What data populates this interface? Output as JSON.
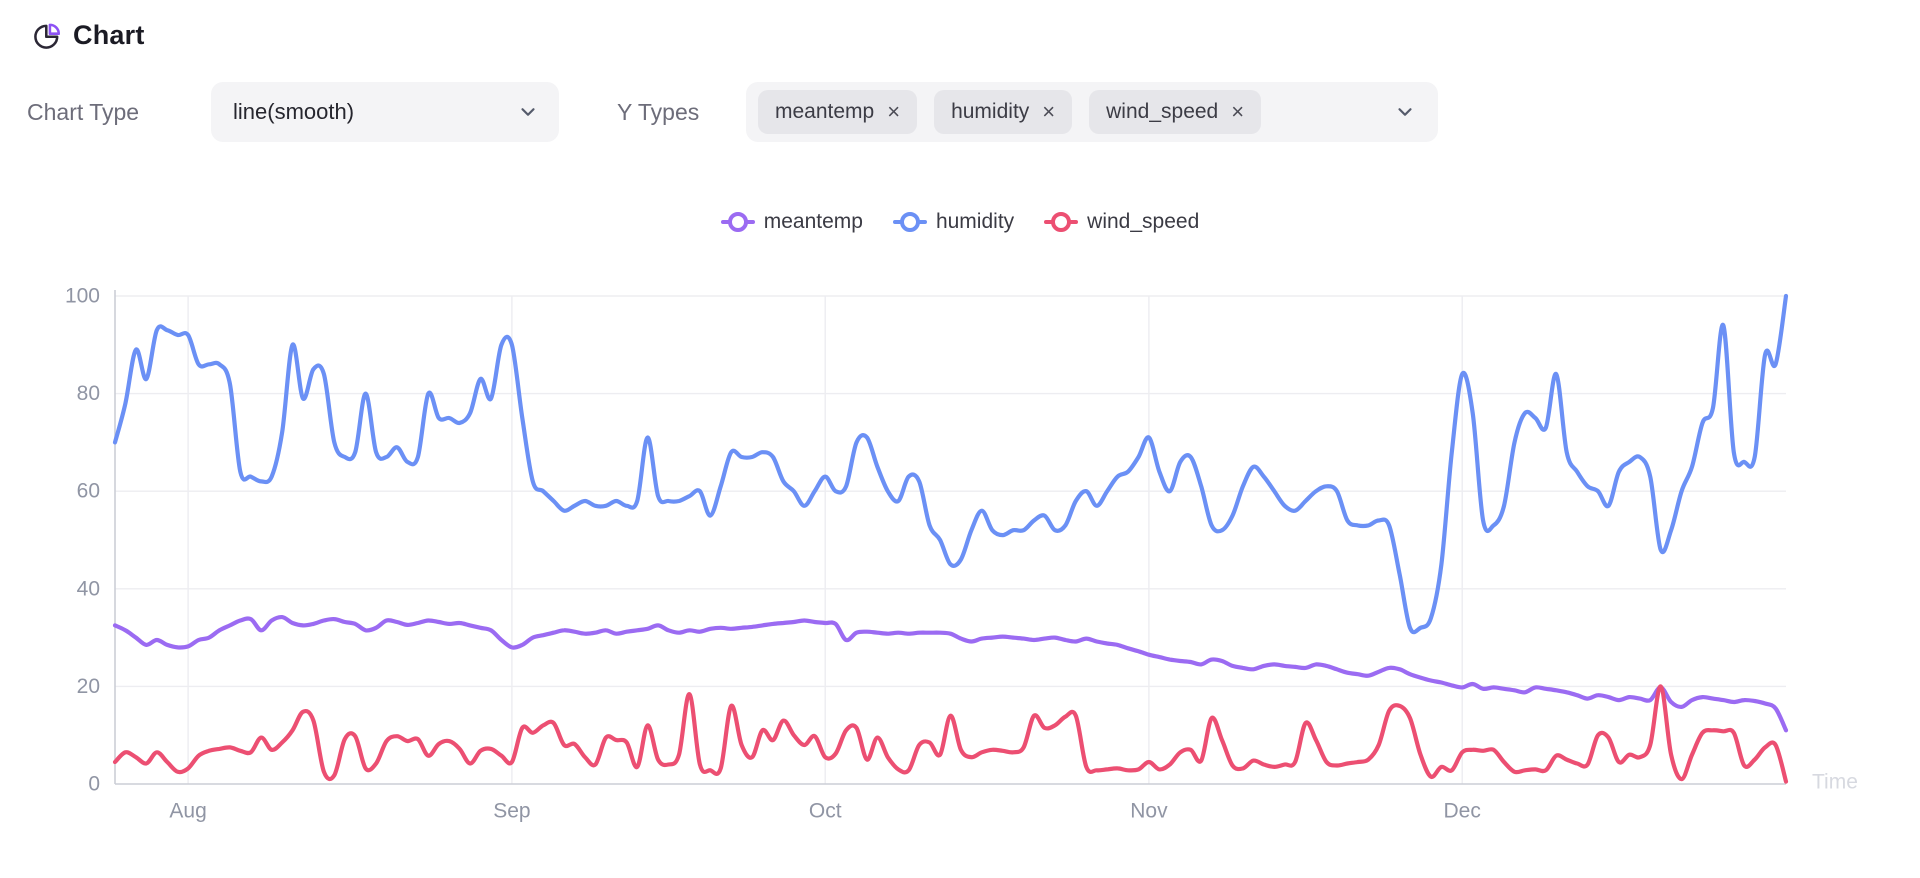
{
  "header": {
    "title": "Chart"
  },
  "controls": {
    "chart_type_label": "Chart Type",
    "chart_type_value": "line(smooth)",
    "y_types_label": "Y Types",
    "chip_remove_glyph": "×",
    "chips": [
      {
        "label": "meantemp"
      },
      {
        "label": "humidity"
      },
      {
        "label": "wind_speed"
      }
    ]
  },
  "legend": [
    {
      "label": "meantemp",
      "color": "#9b6bf2"
    },
    {
      "label": "humidity",
      "color": "#6b90f5"
    },
    {
      "label": "wind_speed",
      "color": "#ec4f72"
    }
  ],
  "colors": {
    "accent_purple": "#8d52f5",
    "icon_dark": "#2b2735",
    "grid": "#ededf1",
    "axis": "#ccced6",
    "tick_text": "#9095a4",
    "axis_name_text": "#d7d9e0",
    "control_bg": "#f4f4f6",
    "chip_bg": "#e6e6ea"
  },
  "chart_data": {
    "type": "line",
    "smooth": true,
    "grid": true,
    "legend_position": "top-center",
    "x_axis": {
      "name": "Time",
      "tick_labels": [
        "Aug",
        "Sep",
        "Oct",
        "Nov",
        "Dec"
      ],
      "tick_day_index": [
        7,
        38,
        68,
        99,
        129
      ]
    },
    "y_axis": {
      "range": [
        0,
        100
      ],
      "ticks": [
        0,
        20,
        40,
        60,
        80,
        100
      ]
    },
    "series": [
      {
        "name": "meantemp",
        "color": "#9b6bf2",
        "values": [
          32.5,
          31.5,
          30,
          28.5,
          29.5,
          28.5,
          28,
          28.2,
          29.5,
          30,
          31.5,
          32.5,
          33.5,
          33.8,
          31.5,
          33.5,
          34.2,
          33,
          32.5,
          32.8,
          33.5,
          33.8,
          33.2,
          32.8,
          31.5,
          32,
          33.5,
          33.2,
          32.6,
          33,
          33.5,
          33.2,
          32.8,
          33,
          32.5,
          32,
          31.5,
          29.5,
          28,
          28.5,
          30,
          30.5,
          31,
          31.5,
          31.2,
          30.8,
          31,
          31.5,
          30.8,
          31.2,
          31.5,
          31.8,
          32.5,
          31.5,
          31,
          31.5,
          31.2,
          31.8,
          32,
          31.8,
          32,
          32.2,
          32.5,
          32.8,
          33,
          33.2,
          33.5,
          33.2,
          33,
          32.8,
          29.5,
          31,
          31.2,
          31,
          30.8,
          31,
          30.8,
          31,
          31,
          31,
          30.8,
          29.8,
          29.2,
          29.8,
          30,
          30.2,
          30,
          29.8,
          29.5,
          29.8,
          30,
          29.5,
          29.2,
          29.8,
          29.2,
          28.8,
          28.5,
          27.8,
          27.2,
          26.5,
          26,
          25.5,
          25.2,
          25,
          24.5,
          25.5,
          25.2,
          24.2,
          23.8,
          23.5,
          24.2,
          24.5,
          24.2,
          24,
          23.8,
          24.5,
          24.2,
          23.5,
          22.8,
          22.5,
          22.2,
          23,
          23.8,
          23.5,
          22.5,
          21.8,
          21.2,
          20.8,
          20.2,
          19.8,
          20.5,
          19.5,
          19.8,
          19.5,
          19.2,
          18.8,
          19.8,
          19.5,
          19.2,
          18.8,
          18.2,
          17.5,
          18.2,
          17.8,
          17.2,
          17.8,
          17.5,
          17.2,
          19.8,
          16.8,
          15.8,
          17.2,
          17.8,
          17.5,
          17.2,
          16.8,
          17.2,
          17,
          16.5,
          15.5,
          11
        ]
      },
      {
        "name": "humidity",
        "color": "#6b90f5",
        "values": [
          70,
          78,
          89,
          83,
          93,
          93,
          92,
          92,
          86,
          86,
          86,
          82,
          64,
          63,
          62,
          63,
          72,
          90,
          79,
          85,
          84,
          70,
          67,
          68,
          80,
          68,
          67,
          69,
          66,
          67,
          80,
          75,
          75,
          74,
          76,
          83,
          79,
          90,
          90,
          75,
          62,
          60,
          58,
          56,
          57,
          58,
          57,
          57,
          58,
          57,
          58,
          71,
          59,
          58,
          58,
          59,
          60,
          55,
          61,
          68,
          67,
          67,
          68,
          67,
          62,
          60,
          57,
          60,
          63,
          60,
          61,
          70,
          71,
          65,
          60,
          58,
          63,
          62,
          53,
          50,
          45,
          46,
          52,
          56,
          52,
          51,
          52,
          52,
          54,
          55,
          52,
          53,
          58,
          60,
          57,
          60,
          63,
          64,
          67,
          71,
          64,
          60,
          66,
          67,
          61,
          53,
          52,
          55,
          61,
          65,
          63,
          60,
          57,
          56,
          58,
          60,
          61,
          60,
          54,
          53,
          53,
          54,
          53,
          43,
          32,
          32,
          34,
          45,
          68,
          84,
          76,
          54,
          53,
          57,
          70,
          76,
          75,
          73,
          84,
          68,
          64,
          61,
          60,
          57,
          64,
          66,
          67,
          63,
          48,
          52,
          60,
          65,
          74,
          77,
          94,
          68,
          66,
          67,
          88,
          86,
          100
        ]
      },
      {
        "name": "wind_speed",
        "color": "#ec4f72",
        "values": [
          4.5,
          6.5,
          5.5,
          4.2,
          6.5,
          4.5,
          2.5,
          3.2,
          5.8,
          6.8,
          7.2,
          7.5,
          6.8,
          6.5,
          9.5,
          7,
          8.5,
          11,
          14.8,
          13,
          2.5,
          1.8,
          9.2,
          9.8,
          3.2,
          4.2,
          8.8,
          9.8,
          8.8,
          9.2,
          5.8,
          8.2,
          8.8,
          7.2,
          4.2,
          6.8,
          7.2,
          5.8,
          4.5,
          11.5,
          10.5,
          12,
          12.5,
          8,
          8.2,
          5.5,
          4,
          9.5,
          9,
          8.5,
          3.5,
          12,
          5,
          4,
          6,
          18.4,
          4,
          2.8,
          3.2,
          16,
          8,
          5.5,
          11,
          9,
          13,
          10,
          8,
          9.8,
          5.5,
          6.2,
          11,
          11.5,
          5,
          9.5,
          5.5,
          3,
          2.8,
          8,
          8.5,
          6,
          14,
          7,
          5.5,
          6.5,
          7,
          6.8,
          6.5,
          7.5,
          14,
          11.5,
          12,
          13.8,
          14,
          3.5,
          2.8,
          3,
          3.2,
          2.8,
          3,
          4.5,
          3,
          4,
          6.5,
          7,
          4.8,
          13.5,
          9,
          3.8,
          3.2,
          4.8,
          4,
          3.5,
          4,
          4.5,
          12.5,
          9,
          4.5,
          3.8,
          4.2,
          4.5,
          5,
          8,
          15,
          16,
          13.5,
          6,
          1.5,
          3.5,
          2.8,
          6.5,
          7,
          6.8,
          7,
          4.5,
          2.5,
          2.8,
          3,
          2.8,
          5.8,
          5,
          4.2,
          4,
          10,
          9.5,
          4.5,
          6,
          5.5,
          8,
          20,
          6,
          1,
          6,
          10.5,
          11,
          10.8,
          10.5,
          3.8,
          5,
          7.5,
          8,
          0.5
        ]
      }
    ]
  }
}
